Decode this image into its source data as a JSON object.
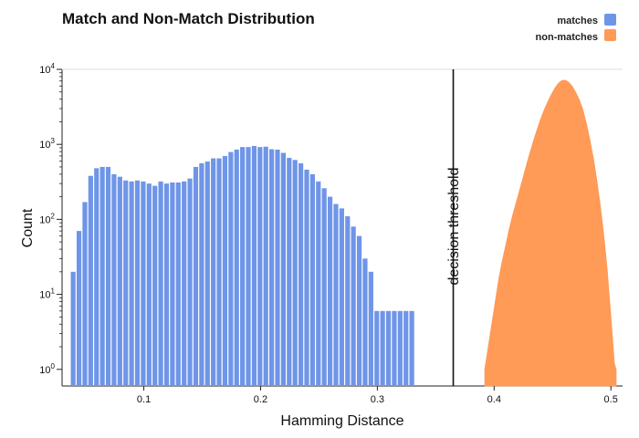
{
  "chart_data": {
    "type": "bar",
    "title": "Match and Non-Match Distribution",
    "xlabel": "Hamming Distance",
    "ylabel": "Count",
    "yscale": "log",
    "ylim": [
      0.6,
      10000
    ],
    "xlim": [
      0.03,
      0.51
    ],
    "grid": false,
    "legend_position": "top-right",
    "colors": {
      "matches": "#6e95e8",
      "non_matches": "#ff9a57"
    },
    "x_ticks": [
      {
        "value": 0.1,
        "label": "0.1"
      },
      {
        "value": 0.2,
        "label": "0.2"
      },
      {
        "value": 0.3,
        "label": "0.3"
      },
      {
        "value": 0.4,
        "label": "0.4"
      },
      {
        "value": 0.5,
        "label": "0.5"
      }
    ],
    "y_ticks": [
      {
        "value": 1,
        "base": "10",
        "exp": "0"
      },
      {
        "value": 10,
        "base": "10",
        "exp": "1"
      },
      {
        "value": 100,
        "base": "10",
        "exp": "2"
      },
      {
        "value": 1000,
        "base": "10",
        "exp": "3"
      },
      {
        "value": 10000,
        "base": "10",
        "exp": "4"
      }
    ],
    "threshold": {
      "x": 0.365,
      "label": "decision threshold"
    },
    "series": [
      {
        "name": "matches",
        "bin_width": 0.005,
        "x": [
          0.0395,
          0.0445,
          0.0495,
          0.0545,
          0.0595,
          0.0645,
          0.0695,
          0.0745,
          0.0795,
          0.0845,
          0.0895,
          0.0945,
          0.0995,
          0.1045,
          0.1095,
          0.1145,
          0.1195,
          0.1245,
          0.1295,
          0.1345,
          0.1395,
          0.1445,
          0.1495,
          0.1545,
          0.1595,
          0.1645,
          0.1695,
          0.1745,
          0.1795,
          0.1845,
          0.1895,
          0.1945,
          0.1995,
          0.2045,
          0.2095,
          0.2145,
          0.2195,
          0.2245,
          0.2295,
          0.2345,
          0.2395,
          0.2445,
          0.2495,
          0.2545,
          0.2595,
          0.2645,
          0.2695,
          0.2745,
          0.2795,
          0.2845,
          0.2895,
          0.2945,
          0.2995,
          0.3045,
          0.3095,
          0.3145,
          0.3195,
          0.3245,
          0.3295
        ],
        "values": [
          20,
          70,
          170,
          380,
          480,
          500,
          500,
          400,
          370,
          330,
          320,
          330,
          320,
          300,
          280,
          320,
          300,
          310,
          310,
          320,
          350,
          500,
          560,
          590,
          650,
          650,
          700,
          790,
          850,
          920,
          920,
          950,
          920,
          930,
          860,
          850,
          770,
          660,
          620,
          560,
          460,
          400,
          320,
          260,
          200,
          160,
          140,
          110,
          80,
          60,
          30,
          20,
          6,
          6,
          6,
          6,
          6,
          6,
          6
        ]
      },
      {
        "name": "non-matches",
        "type": "area",
        "x": [
          0.392,
          0.395,
          0.398,
          0.401,
          0.404,
          0.407,
          0.41,
          0.413,
          0.416,
          0.419,
          0.422,
          0.425,
          0.428,
          0.431,
          0.434,
          0.437,
          0.44,
          0.443,
          0.446,
          0.449,
          0.452,
          0.455,
          0.458,
          0.461,
          0.464,
          0.467,
          0.47,
          0.473,
          0.476,
          0.479,
          0.482,
          0.485,
          0.488,
          0.491,
          0.494,
          0.497,
          0.5,
          0.503,
          0.5045
        ],
        "values": [
          1,
          2,
          4,
          8,
          16,
          28,
          45,
          75,
          115,
          170,
          250,
          370,
          550,
          800,
          1150,
          1600,
          2200,
          2900,
          3700,
          4600,
          5600,
          6500,
          7100,
          7150,
          6700,
          5900,
          4900,
          3900,
          2900,
          1900,
          1150,
          650,
          330,
          150,
          60,
          20,
          5,
          1.2,
          1
        ]
      }
    ]
  }
}
